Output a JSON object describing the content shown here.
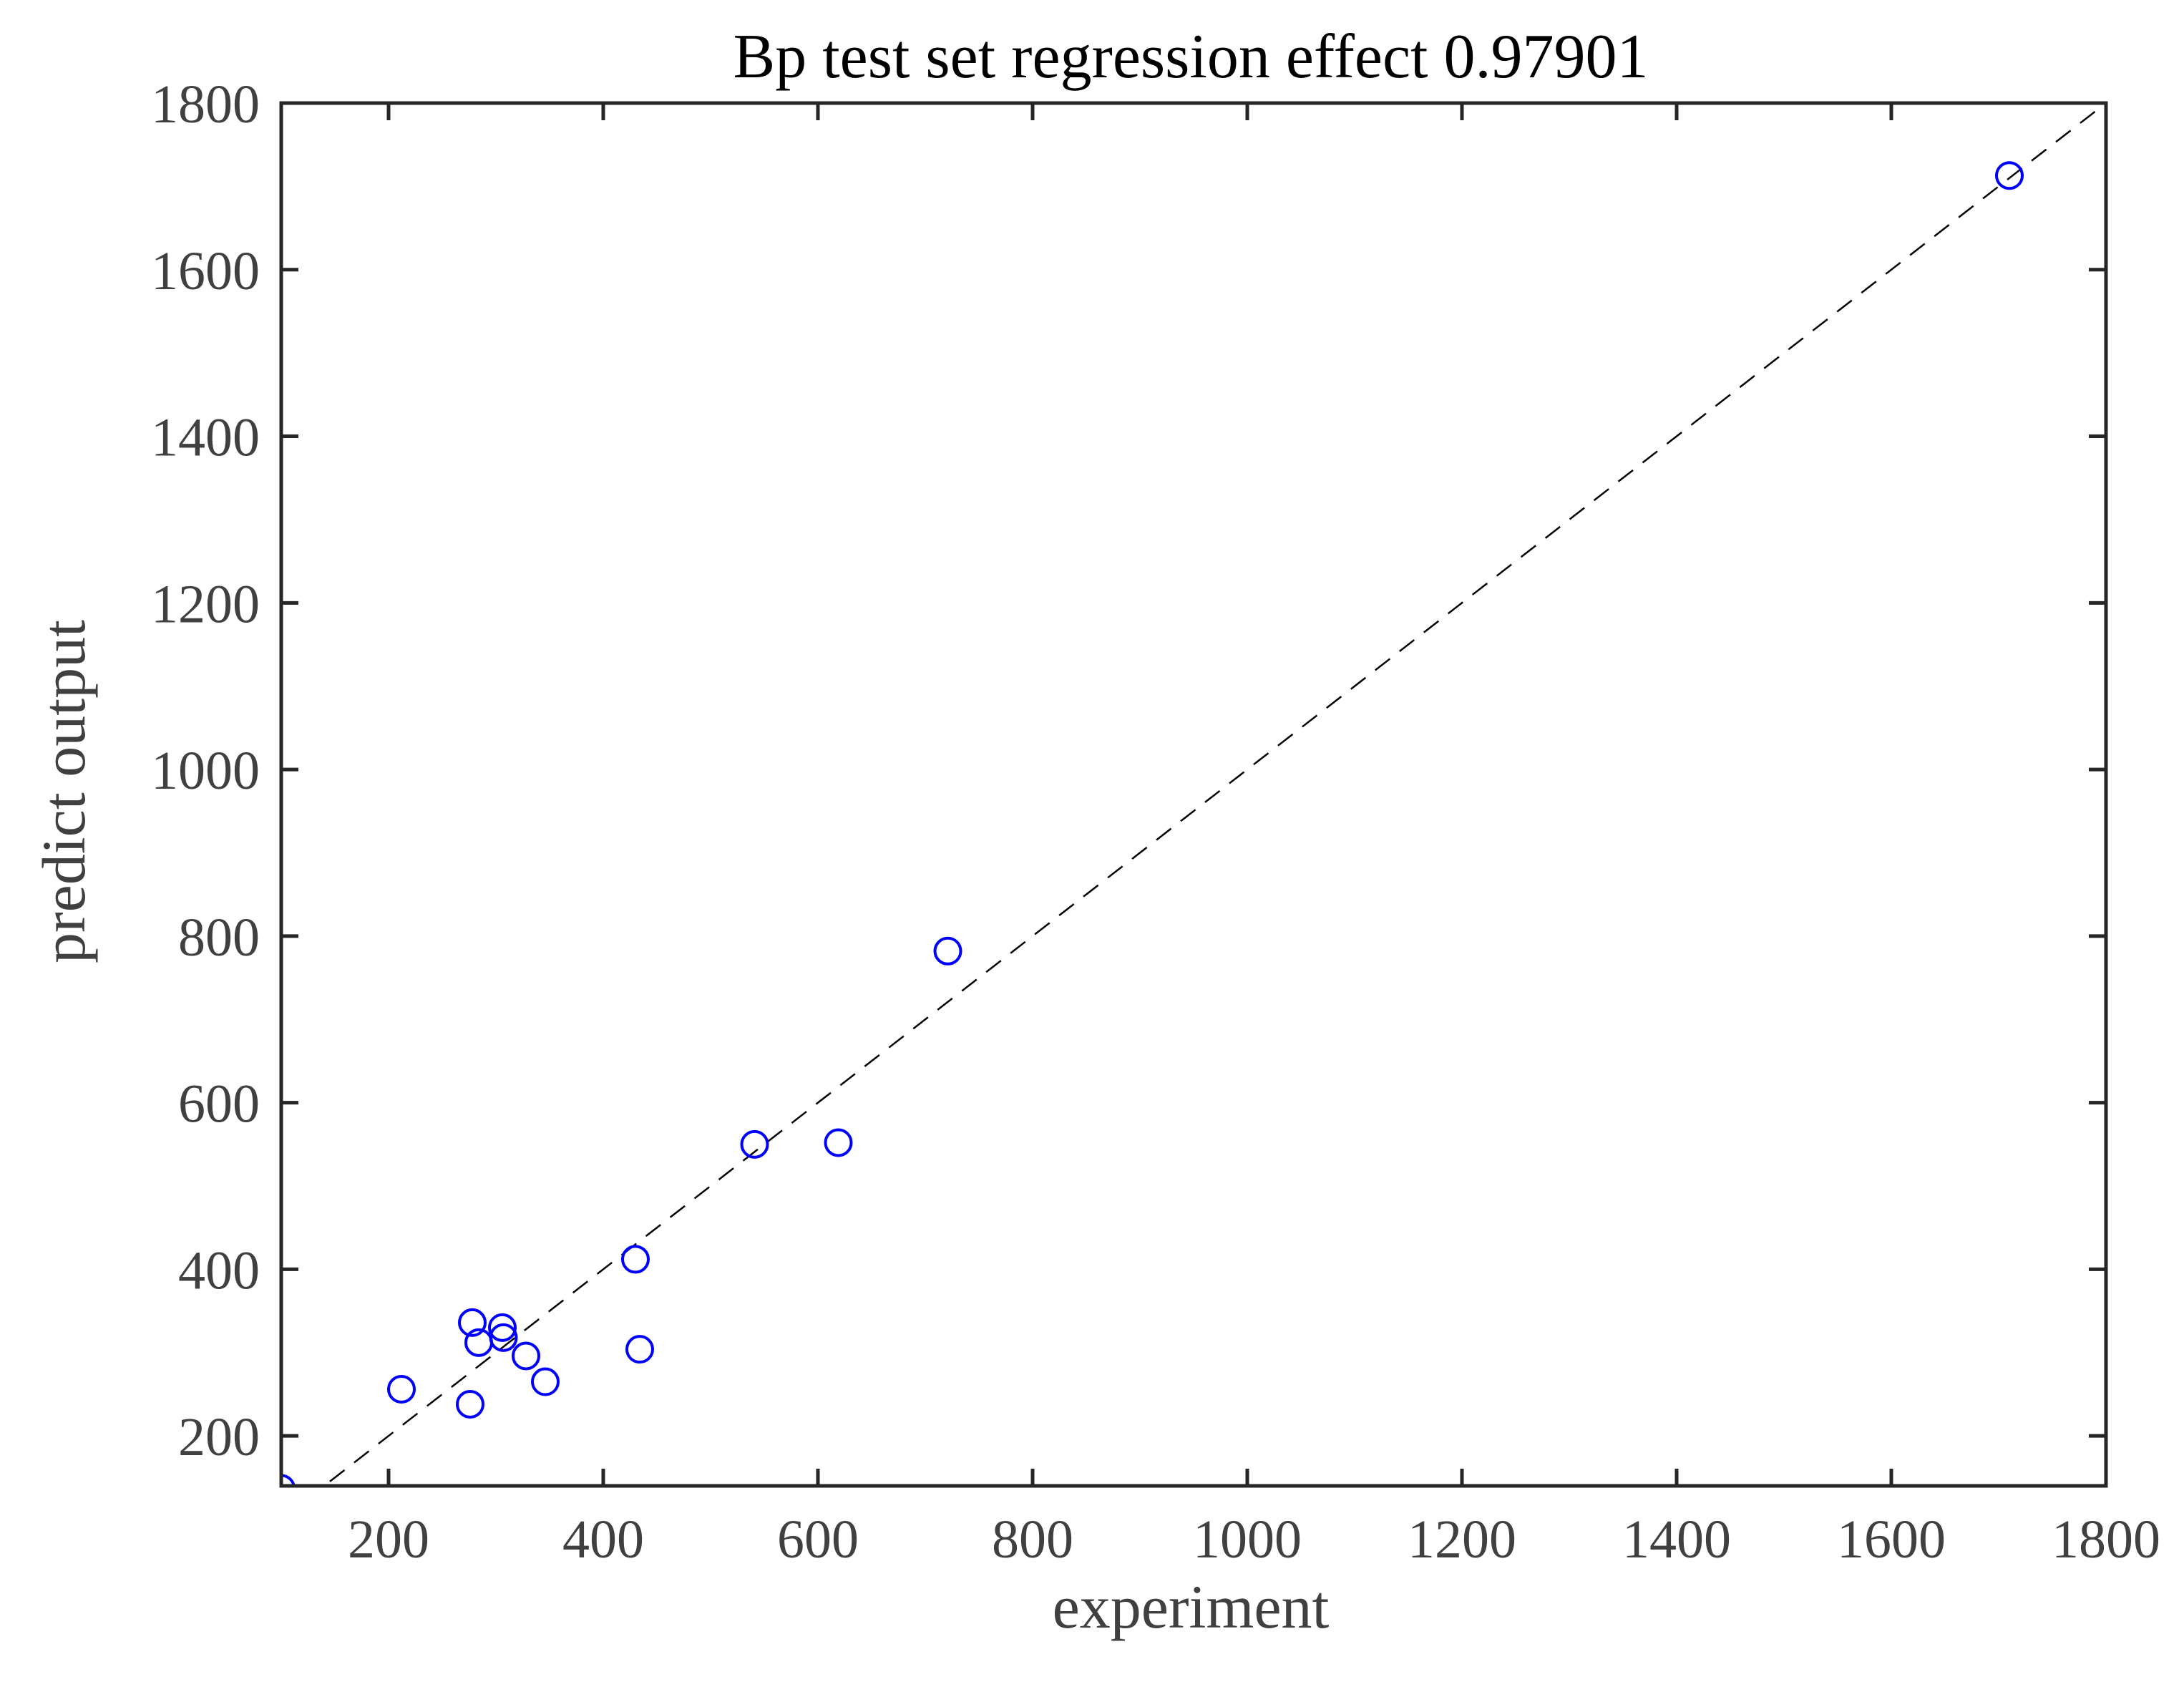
{
  "chart_data": {
    "type": "scatter",
    "title": "Bp test set regression effect  0.97901",
    "xlabel": "experiment",
    "ylabel": "predict output",
    "xlim": [
      100,
      1800
    ],
    "ylim": [
      140,
      1800
    ],
    "xticks": [
      200,
      400,
      600,
      800,
      1000,
      1200,
      1400,
      1600,
      1800
    ],
    "yticks": [
      200,
      400,
      600,
      800,
      1000,
      1200,
      1400,
      1600,
      1800
    ],
    "grid": false,
    "reference_line": {
      "style": "dashed",
      "color": "#000000",
      "from": [
        100,
        100
      ],
      "to": [
        1800,
        1800
      ]
    },
    "marker": {
      "shape": "open-circle",
      "color": "#0000ff"
    },
    "points": [
      {
        "x": 100,
        "y": 137
      },
      {
        "x": 212,
        "y": 256
      },
      {
        "x": 276,
        "y": 238
      },
      {
        "x": 278,
        "y": 336
      },
      {
        "x": 284,
        "y": 312
      },
      {
        "x": 306,
        "y": 330
      },
      {
        "x": 307,
        "y": 318
      },
      {
        "x": 328,
        "y": 296
      },
      {
        "x": 346,
        "y": 265
      },
      {
        "x": 430,
        "y": 412
      },
      {
        "x": 434,
        "y": 304
      },
      {
        "x": 541,
        "y": 550
      },
      {
        "x": 619,
        "y": 552
      },
      {
        "x": 721,
        "y": 782
      },
      {
        "x": 1710,
        "y": 1713
      }
    ]
  }
}
